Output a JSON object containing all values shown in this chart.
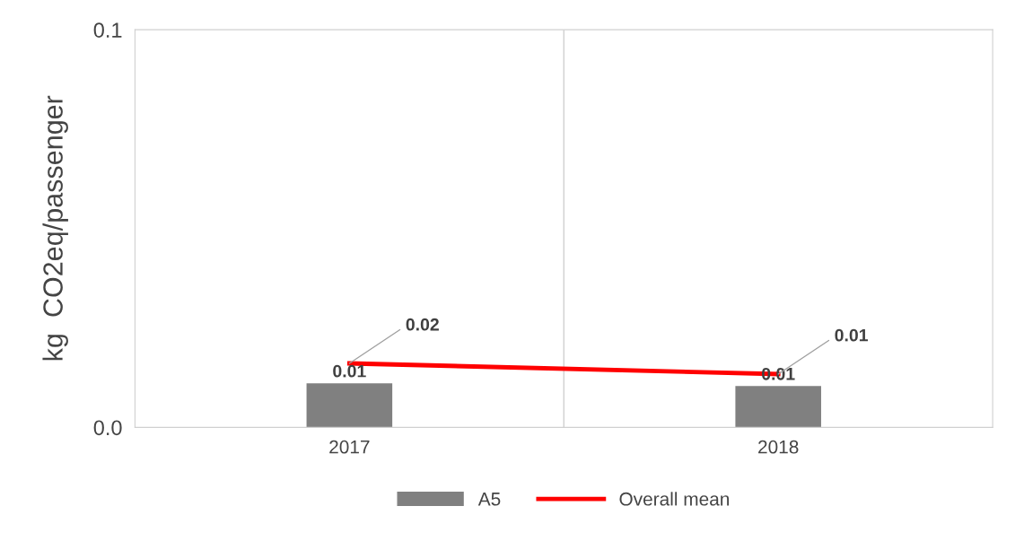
{
  "chart_data": {
    "type": "bar",
    "ylabel": "kg  CO2eq/passenger",
    "categories": [
      "2017",
      "2018"
    ],
    "series": [
      {
        "name": "A5",
        "color": "#808080",
        "values": [
          0.0111,
          0.0104
        ],
        "value_labels": [
          "0.01",
          "0.01"
        ]
      },
      {
        "name": "Overall mean",
        "type": "line",
        "color": "#ff0000",
        "values": [
          0.0161,
          0.0134
        ],
        "value_labels": [
          "0.02",
          "0.01"
        ]
      }
    ],
    "ylim": [
      0,
      0.1
    ],
    "yticks": [
      {
        "value": 0,
        "label": "0.0"
      },
      {
        "value": 0.1,
        "label": "0.1"
      }
    ],
    "grid": "x",
    "legend": "bottom",
    "marker": "none",
    "line_style": "solid"
  }
}
